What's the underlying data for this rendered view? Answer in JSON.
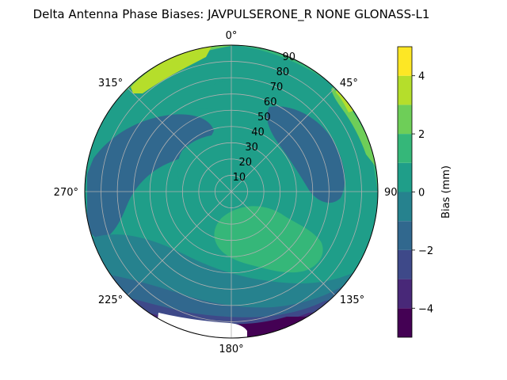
{
  "chart_data": {
    "type": "polar-contourf",
    "title": "Delta Antenna Phase Biases: JAVPULSERONE_R  NONE GLONASS-L1",
    "theta_direction": "clockwise",
    "theta_zero": "north",
    "azimuth_tick_labels": [
      "0°",
      "45°",
      "90°",
      "135°",
      "180°",
      "225°",
      "270°",
      "315°"
    ],
    "radial_tick_labels": [
      "10",
      "20",
      "30",
      "40",
      "50",
      "60",
      "70",
      "80",
      "90"
    ],
    "radial_range": [
      0,
      90
    ],
    "grid": true,
    "colorbar": {
      "label": "Bias (mm)",
      "range": [
        -5,
        5
      ],
      "levels": [
        -5,
        -4,
        -3,
        -2,
        -1,
        0,
        1,
        2,
        3,
        4,
        5
      ],
      "tick_labels": [
        "−4",
        "−2",
        "0",
        "2",
        "4"
      ],
      "tick_values": [
        -4,
        -2,
        0,
        2,
        4
      ],
      "colors": [
        "#440154",
        "#482878",
        "#3e4989",
        "#31688e",
        "#26828e",
        "#1f9e89",
        "#35b779",
        "#6ece58",
        "#b5de2b",
        "#fde725"
      ]
    },
    "regions": [
      {
        "name": "outer-ring",
        "bias": 0
      },
      {
        "name": "north-east-band",
        "bias": 1.5
      },
      {
        "name": "north-west-band",
        "bias": 2.5
      },
      {
        "name": "north-west-rim",
        "bias": 3.5
      },
      {
        "name": "north-east-rim",
        "bias": 2.5
      },
      {
        "name": "north-east-rim-tip",
        "bias": 3.5
      },
      {
        "name": "north-center-lobe",
        "bias": 0.5
      },
      {
        "name": "east-dip-zone",
        "bias": -1.5
      },
      {
        "name": "west-dip-zone",
        "bias": -1.5
      },
      {
        "name": "center-disc",
        "bias": 0.5
      },
      {
        "name": "south-east-lobe",
        "bias": 1.5
      },
      {
        "name": "south-west-band",
        "bias": -0.5
      },
      {
        "name": "south-band-1",
        "bias": -1.5
      },
      {
        "name": "south-band-2",
        "bias": -2.5
      },
      {
        "name": "south-band-3",
        "bias": -3.5
      },
      {
        "name": "south-rim",
        "bias": -4.5
      }
    ]
  }
}
